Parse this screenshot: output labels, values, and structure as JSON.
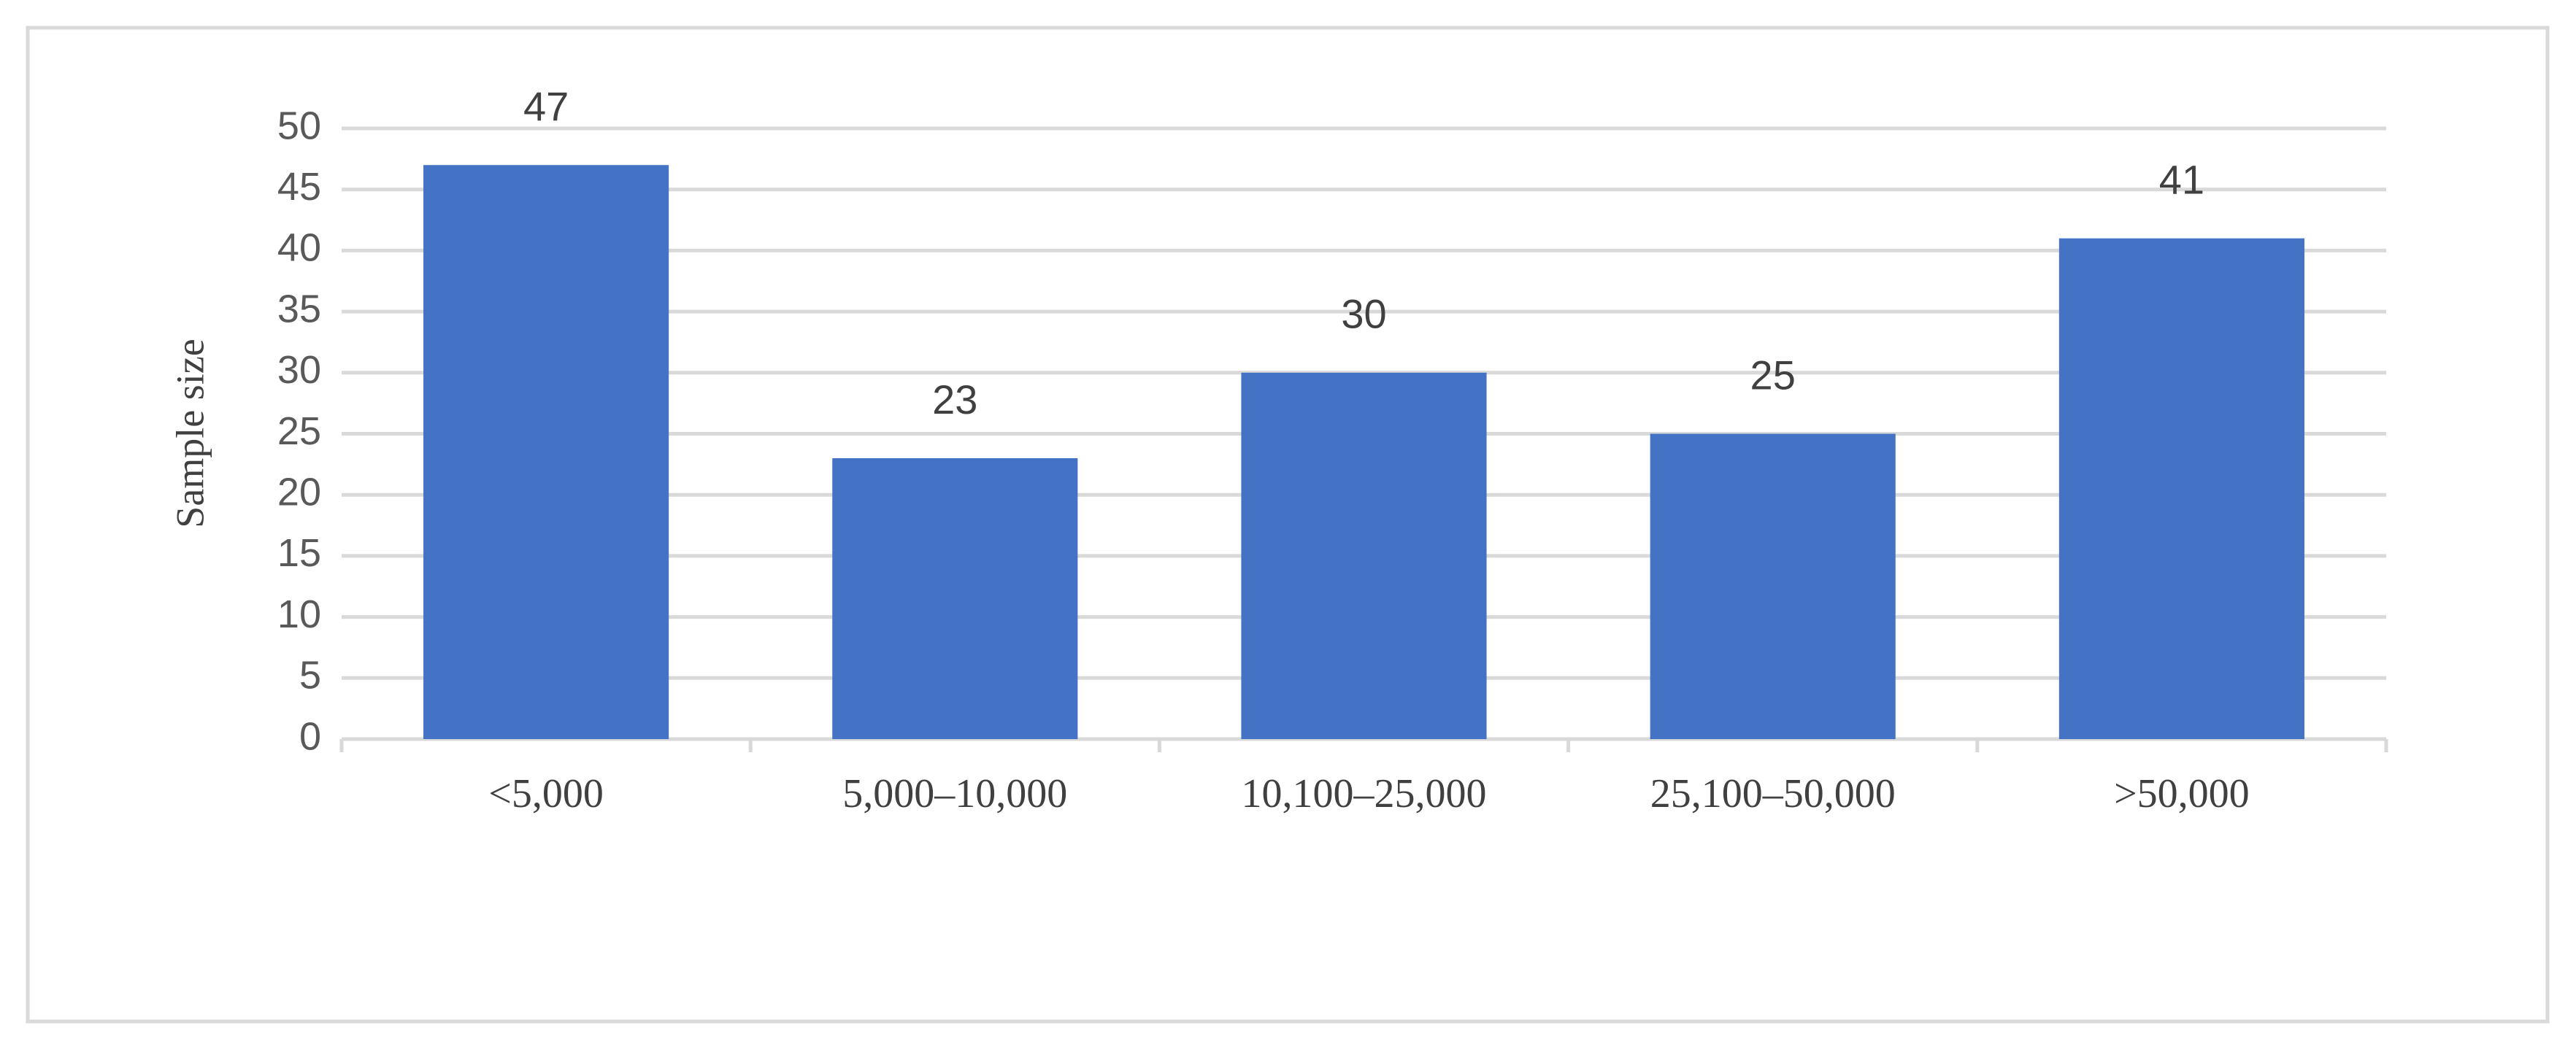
{
  "chart_data": {
    "type": "bar",
    "y_label": "Sample size",
    "categories": [
      "<5,000",
      "5,000–10,000",
      "10,100–25,000",
      "25,100–50,000",
      ">50,000"
    ],
    "values": [
      47,
      23,
      30,
      25,
      41
    ],
    "color": "#4472c4",
    "ylim": [
      0,
      50
    ],
    "yticks": [
      0,
      5,
      10,
      15,
      20,
      25,
      30,
      35,
      40,
      45,
      50
    ],
    "grid": true
  }
}
